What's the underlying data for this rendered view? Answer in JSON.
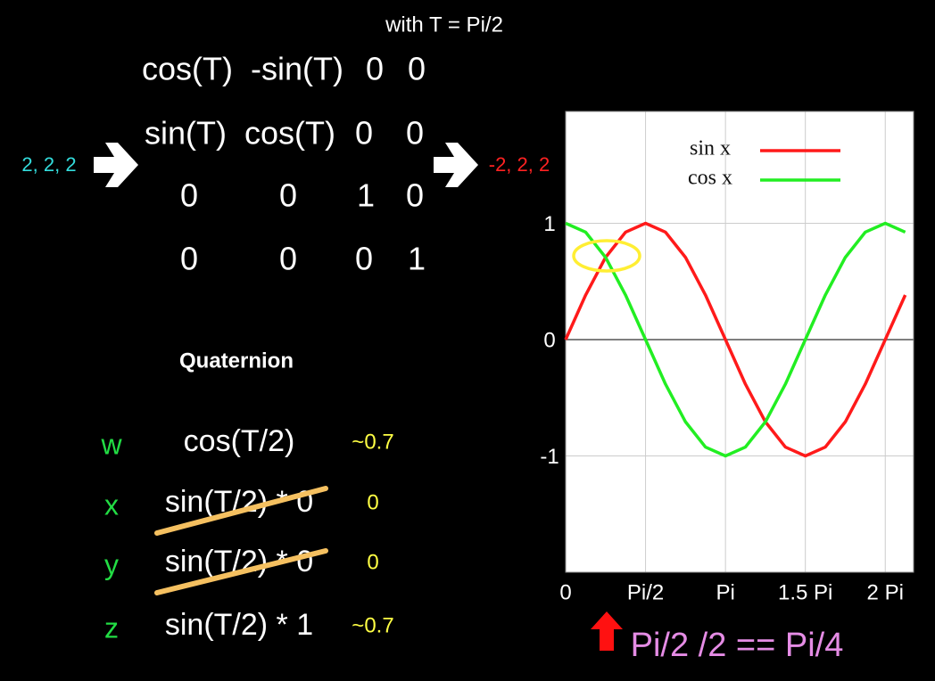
{
  "header": "with T = Pi/2",
  "input": "2, 2, 2",
  "output": "-2, 2, 2",
  "matrix": [
    [
      "cos(T)",
      "-sin(T)",
      "0",
      "0"
    ],
    [
      "sin(T)",
      "cos(T)",
      "0",
      "0"
    ],
    [
      "0",
      "0",
      "1",
      "0"
    ],
    [
      "0",
      "0",
      "0",
      "1"
    ]
  ],
  "quaternion": {
    "title": "Quaternion",
    "rows": [
      [
        "w",
        "cos(T/2)",
        "~0.7"
      ],
      [
        "x",
        "sin(T/2) * 0",
        "0"
      ],
      [
        "y",
        "sin(T/2) * 0",
        "0"
      ],
      [
        "z",
        "sin(T/2) * 1",
        "~0.7"
      ]
    ]
  },
  "annotation": "Pi/2 /2 == Pi/4",
  "chart_data": {
    "type": "line",
    "x": [
      0,
      0.393,
      0.785,
      1.178,
      1.571,
      1.963,
      2.356,
      2.749,
      3.142,
      3.534,
      3.927,
      4.32,
      4.712,
      5.105,
      5.498,
      5.89,
      6.283,
      6.676
    ],
    "series": [
      {
        "name": "sin x",
        "color": "#ff1a1a",
        "values": [
          0,
          0.383,
          0.707,
          0.924,
          1,
          0.924,
          0.707,
          0.383,
          0,
          -0.383,
          -0.707,
          -0.924,
          -1,
          -0.924,
          -0.707,
          -0.383,
          0,
          0.383
        ]
      },
      {
        "name": "cos x",
        "color": "#22ee22",
        "values": [
          1,
          0.924,
          0.707,
          0.383,
          0,
          -0.383,
          -0.707,
          -0.924,
          -1,
          -0.924,
          -0.707,
          -0.383,
          0,
          0.383,
          0.707,
          0.924,
          1,
          0.924
        ]
      }
    ],
    "xlim": [
      0,
      6.84
    ],
    "ylim": [
      -2,
      2
    ],
    "xticks": [
      0,
      {
        "value": 1.571,
        "label": "Pi/2"
      },
      {
        "value": 3.142,
        "label": "Pi"
      },
      {
        "value": 4.712,
        "label": "1.5 Pi"
      },
      {
        "value": 6.283,
        "label": "2 Pi"
      }
    ],
    "yticks": [
      -1,
      0,
      1
    ],
    "grid": true,
    "legend": "top-right"
  }
}
